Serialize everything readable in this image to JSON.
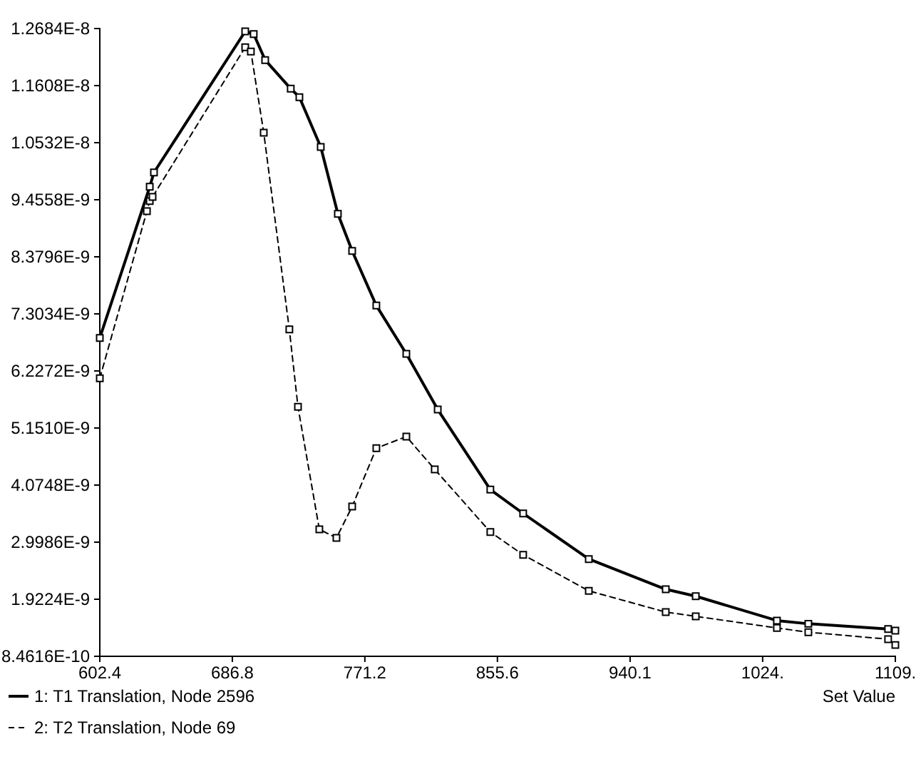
{
  "chart_data": {
    "type": "line",
    "xlabel": "Set Value",
    "marker": "square",
    "legend": "bottom left",
    "grid": false,
    "xlim": [
      602.4,
      1109
    ],
    "ylim": [
      8.4616e-10,
      1.2684e-08
    ],
    "xticks": [
      602.4,
      686.8,
      771.2,
      855.6,
      940.1,
      {
        "value": 1024.5,
        "label": "1024."
      },
      {
        "value": 1109,
        "label": "1109."
      }
    ],
    "yticks": [
      {
        "value": 8.4616e-10,
        "label": "8.4616E-10"
      },
      {
        "value": 1.9224e-09,
        "label": "1.9224E-9"
      },
      {
        "value": 2.9986e-09,
        "label": "2.9986E-9"
      },
      {
        "value": 4.0748e-09,
        "label": "4.0748E-9"
      },
      {
        "value": 5.151e-09,
        "label": "5.1510E-9"
      },
      {
        "value": 6.2272e-09,
        "label": "6.2272E-9"
      },
      {
        "value": 7.3034e-09,
        "label": "7.3034E-9"
      },
      {
        "value": 8.3796e-09,
        "label": "8.3796E-9"
      },
      {
        "value": 9.4558e-09,
        "label": "9.4558E-9"
      },
      {
        "value": 1.0532e-08,
        "label": "1.0532E-8"
      },
      {
        "value": 1.1608e-08,
        "label": "1.1608E-8"
      },
      {
        "value": 1.2684e-08,
        "label": "1.2684E-8"
      }
    ],
    "series": [
      {
        "name": "1: T1 Translation, Node 2596",
        "color": "#000000",
        "line_style": "solid",
        "x": [
          602.4,
          634.2,
          636.9,
          695.0,
          700.4,
          707.7,
          724.0,
          729.5,
          743.1,
          754.0,
          763.1,
          778.5,
          797.6,
          817.6,
          851.1,
          872.0,
          913.8,
          962.8,
          981.9,
          1033.6,
          1053.6,
          1104.4,
          1109
        ],
        "values": [
          6.85e-09,
          9.7e-09,
          9.97e-09,
          1.263e-08,
          1.258e-08,
          1.209e-08,
          1.155e-08,
          1.139e-08,
          1.045e-08,
          9.19e-09,
          8.49e-09,
          7.46e-09,
          6.55e-09,
          5.5e-09,
          3.99e-09,
          3.54e-09,
          2.68e-09,
          2.11e-09,
          1.98e-09,
          1.52e-09,
          1.46e-09,
          1.36e-09,
          1.33e-09
        ]
      },
      {
        "name": "2: T2 Translation, Node 69",
        "color": "#000000",
        "line_style": "dashed",
        "x": [
          602.4,
          632.4,
          634.2,
          636.0,
          695.0,
          698.6,
          706.8,
          723.1,
          728.6,
          742.2,
          753.1,
          763.1,
          778.5,
          797.6,
          815.7,
          851.1,
          872.0,
          913.8,
          962.8,
          981.9,
          1033.6,
          1053.6,
          1104.4,
          1109
        ],
        "values": [
          6.09e-09,
          9.24e-09,
          9.43e-09,
          9.51e-09,
          1.233e-08,
          1.225e-08,
          1.072e-08,
          7.01e-09,
          5.55e-09,
          3.24e-09,
          3.08e-09,
          3.67e-09,
          4.77e-09,
          4.99e-09,
          4.37e-09,
          3.19e-09,
          2.76e-09,
          2.08e-09,
          1.68e-09,
          1.6e-09,
          1.38e-09,
          1.3e-09,
          1.17e-09,
          1.06e-09
        ]
      }
    ]
  }
}
